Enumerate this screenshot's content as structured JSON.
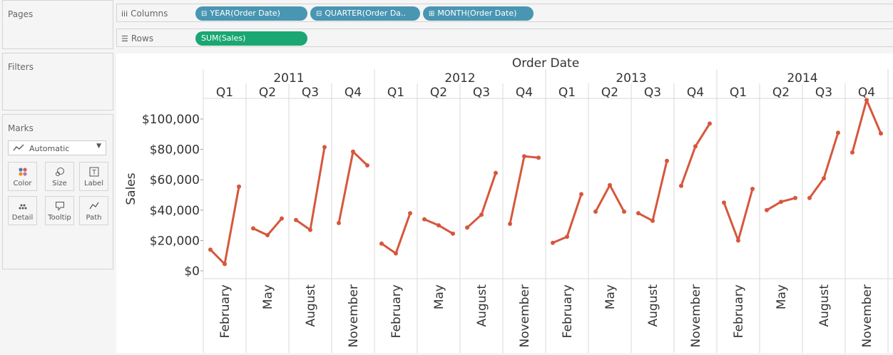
{
  "panels": {
    "pages": "Pages",
    "filters": "Filters",
    "marks": "Marks",
    "mark_type": "Automatic",
    "mark_buttons": [
      "Color",
      "Size",
      "Label",
      "Detail",
      "Tooltip",
      "Path"
    ]
  },
  "shelves": {
    "columns_label": "Columns",
    "rows_label": "Rows",
    "column_pills": [
      "YEAR(Order Date)",
      "QUARTER(Order Da..",
      "MONTH(Order Date)"
    ],
    "row_pills": [
      "SUM(Sales)"
    ]
  },
  "colors": {
    "line": "#d6573c",
    "pill_dimension": "#4996b2",
    "pill_measure": "#1aa774"
  },
  "chart_data": {
    "type": "line",
    "title": "Order Date",
    "ylabel": "Sales",
    "ylim": [
      0,
      115000
    ],
    "yticks": [
      0,
      20000,
      40000,
      60000,
      80000,
      100000
    ],
    "ytick_labels": [
      "$0",
      "$20,000",
      "$40,000",
      "$60,000",
      "$80,000",
      "$100,000"
    ],
    "years": [
      "2011",
      "2012",
      "2013",
      "2014"
    ],
    "quarters": [
      "Q1",
      "Q2",
      "Q3",
      "Q4"
    ],
    "month_labels": [
      "February",
      "May",
      "August",
      "November"
    ],
    "series": [
      {
        "year": "2011",
        "quarter": "Q1",
        "values": [
          14000,
          4500,
          55500
        ]
      },
      {
        "year": "2011",
        "quarter": "Q2",
        "values": [
          28000,
          23500,
          34500
        ]
      },
      {
        "year": "2011",
        "quarter": "Q3",
        "values": [
          33500,
          27000,
          81500
        ]
      },
      {
        "year": "2011",
        "quarter": "Q4",
        "values": [
          31500,
          78500,
          69500
        ]
      },
      {
        "year": "2012",
        "quarter": "Q1",
        "values": [
          18000,
          11500,
          38000
        ]
      },
      {
        "year": "2012",
        "quarter": "Q2",
        "values": [
          34000,
          30000,
          24500
        ]
      },
      {
        "year": "2012",
        "quarter": "Q3",
        "values": [
          28500,
          37000,
          64500
        ]
      },
      {
        "year": "2012",
        "quarter": "Q4",
        "values": [
          31000,
          75500,
          74500
        ]
      },
      {
        "year": "2013",
        "quarter": "Q1",
        "values": [
          18500,
          22500,
          50500
        ]
      },
      {
        "year": "2013",
        "quarter": "Q2",
        "values": [
          39000,
          56500,
          39000
        ]
      },
      {
        "year": "2013",
        "quarter": "Q3",
        "values": [
          38000,
          33000,
          72500
        ]
      },
      {
        "year": "2013",
        "quarter": "Q4",
        "values": [
          56000,
          82000,
          97000
        ]
      },
      {
        "year": "2014",
        "quarter": "Q1",
        "values": [
          45000,
          20000,
          54000
        ]
      },
      {
        "year": "2014",
        "quarter": "Q2",
        "values": [
          40000,
          45500,
          48000
        ]
      },
      {
        "year": "2014",
        "quarter": "Q3",
        "values": [
          48000,
          61000,
          91000
        ]
      },
      {
        "year": "2014",
        "quarter": "Q4",
        "values": [
          78000,
          112500,
          90500
        ]
      }
    ]
  }
}
